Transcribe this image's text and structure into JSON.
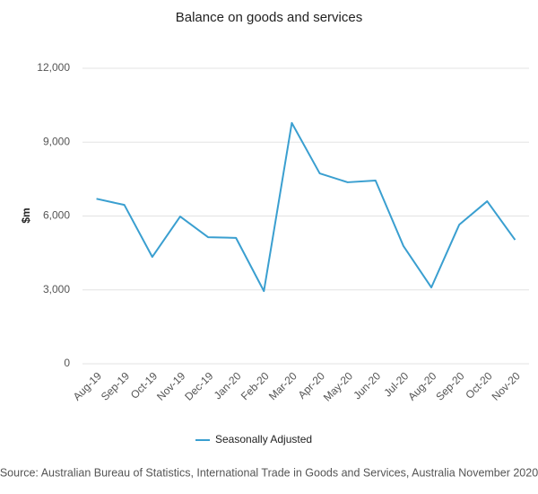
{
  "chart_data": {
    "type": "line",
    "title": "Balance on goods and services",
    "y_label": "$m",
    "categories": [
      "Aug-19",
      "Sep-19",
      "Oct-19",
      "Nov-19",
      "Dec-19",
      "Jan-20",
      "Feb-20",
      "Mar-20",
      "Apr-20",
      "May-20",
      "Jun-20",
      "Jul-20",
      "Aug-20",
      "Sep-20",
      "Oct-20",
      "Nov-20"
    ],
    "series": [
      {
        "name": "Seasonally Adjusted",
        "color": "#3a9fd0",
        "values": [
          6700,
          6450,
          4340,
          5980,
          5140,
          5110,
          2950,
          9780,
          7730,
          7370,
          7440,
          4780,
          3100,
          5650,
          6600,
          5030
        ]
      }
    ],
    "ylim": [
      0,
      12000
    ],
    "yticks": [
      0,
      {
        "value": 3000,
        "label": "3,000"
      },
      {
        "value": 6000,
        "label": "6,000"
      },
      {
        "value": 9000,
        "label": "9,000"
      },
      {
        "value": 12000,
        "label": "12,000"
      }
    ],
    "grid": true,
    "legend": "bottom",
    "source": "Source: Australian Bureau of Statistics, International Trade in Goods and Services, Australia November 2020"
  }
}
